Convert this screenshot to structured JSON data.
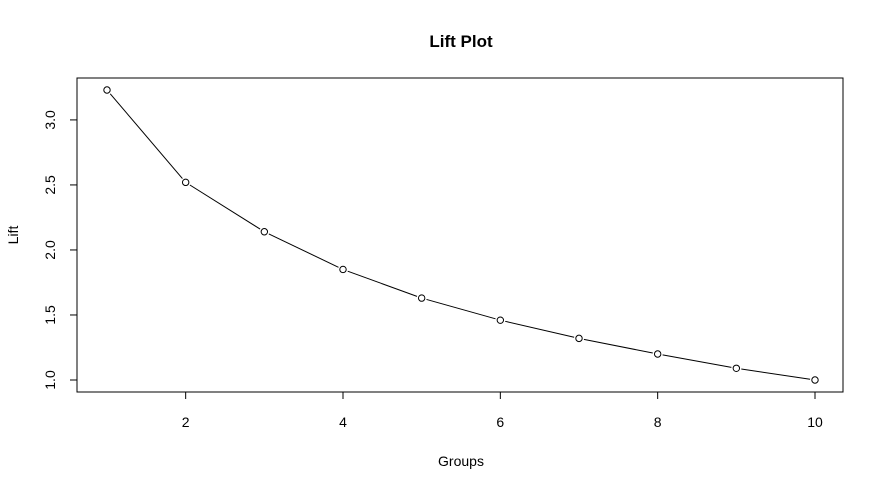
{
  "chart_data": {
    "type": "line",
    "title": "Lift Plot",
    "xlabel": "Groups",
    "ylabel": "Lift",
    "x": [
      1,
      2,
      3,
      4,
      5,
      6,
      7,
      8,
      9,
      10
    ],
    "series": [
      {
        "values": [
          3.23,
          2.52,
          2.14,
          1.85,
          1.63,
          1.46,
          1.32,
          1.2,
          1.09,
          1.0
        ]
      }
    ],
    "xlim": [
      1,
      10
    ],
    "ylim": [
      1.0,
      3.23
    ],
    "x_ticks": [
      2,
      4,
      6,
      8,
      10
    ],
    "y_ticks": [
      1.0,
      1.5,
      2.0,
      2.5,
      3.0
    ],
    "x_tick_labels": [
      "2",
      "4",
      "6",
      "8",
      "10"
    ],
    "y_tick_labels": [
      "1.0",
      "1.5",
      "2.0",
      "2.5",
      "3.0"
    ],
    "grid": false,
    "markers": "open-circle",
    "line_color": "#000000"
  }
}
